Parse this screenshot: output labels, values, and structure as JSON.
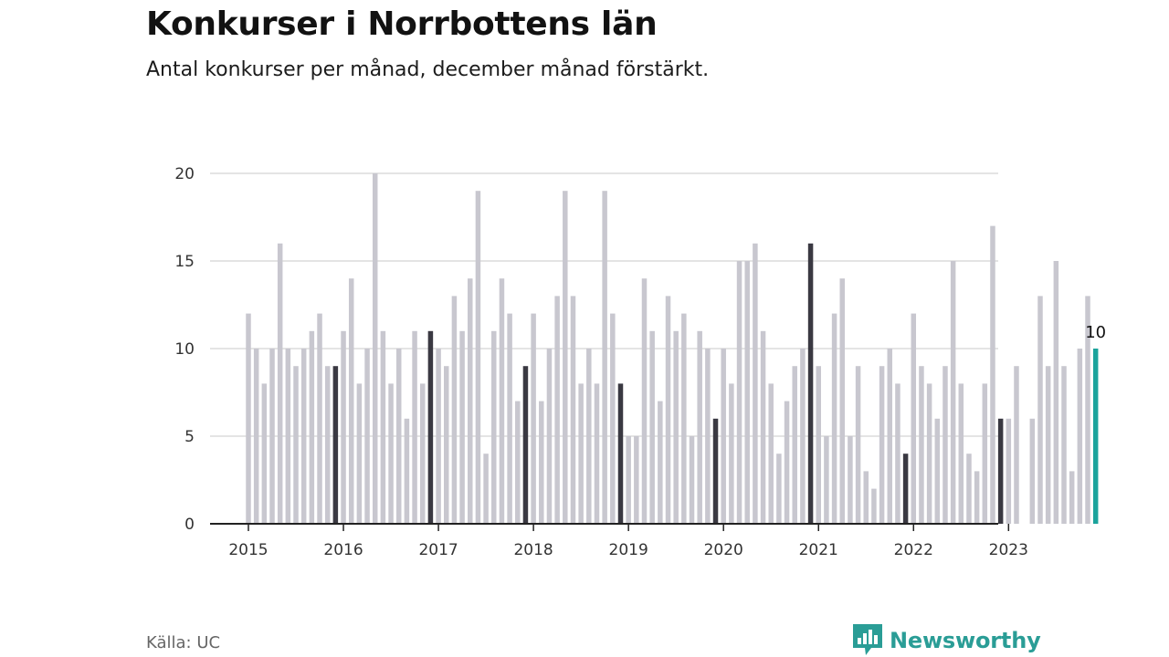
{
  "title": "Konkurser i Norrbottens län",
  "subtitle": "Antal konkurser per månad, december månad förstärkt.",
  "source": "Källa: UC",
  "brand": {
    "name": "Newsworthy",
    "icon": "newsworthy-logo-icon",
    "color": "#2a9d96"
  },
  "chart_data": {
    "type": "bar",
    "title": "Konkurser i Norrbottens län",
    "subtitle": "Antal konkurser per månad, december månad förstärkt.",
    "xlabel": "",
    "ylabel": "",
    "ylim": [
      0,
      20
    ],
    "y_ticks": [
      0,
      5,
      10,
      15,
      20
    ],
    "x_tick_labels": [
      "2015",
      "2016",
      "2017",
      "2018",
      "2019",
      "2020",
      "2021",
      "2022",
      "2023"
    ],
    "grid": true,
    "colors": {
      "default": "#c8c7cf",
      "december": "#3a3942",
      "latest": "#1ba39c"
    },
    "start_period": "2015-01",
    "last_value_label": "10",
    "values": [
      12,
      10,
      8,
      10,
      16,
      10,
      9,
      10,
      11,
      12,
      9,
      9,
      11,
      14,
      8,
      10,
      20,
      11,
      8,
      10,
      6,
      11,
      8,
      11,
      10,
      9,
      13,
      11,
      14,
      19,
      4,
      11,
      14,
      12,
      7,
      9,
      12,
      7,
      10,
      13,
      19,
      13,
      8,
      10,
      8,
      19,
      12,
      8,
      5,
      5,
      14,
      11,
      7,
      13,
      11,
      12,
      5,
      11,
      10,
      6,
      10,
      8,
      15,
      15,
      16,
      11,
      8,
      4,
      7,
      9,
      10,
      16,
      9,
      5,
      12,
      14,
      5,
      9,
      3,
      2,
      9,
      10,
      8,
      4,
      12,
      9,
      8,
      6,
      9,
      15,
      8,
      4,
      3,
      8,
      17,
      6,
      6,
      9,
      0,
      6,
      13,
      9,
      15,
      9,
      3,
      10,
      13,
      10
    ]
  }
}
